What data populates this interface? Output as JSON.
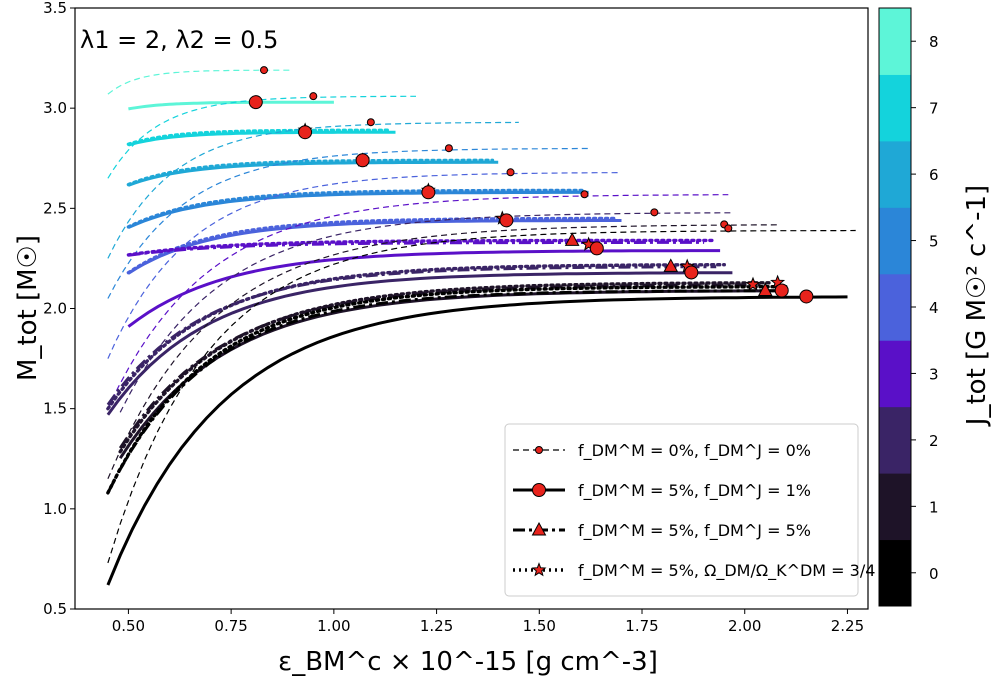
{
  "chart_data": {
    "type": "line",
    "annotation": "λ1 = 2, λ2 = 0.5",
    "xlabel": "ε_BM^c × 10^-15 [g cm^-3]",
    "ylabel": "M_tot [M☉]",
    "colorbar_label": "J_tot [G M☉² c^-1]",
    "xlim": [
      0.37,
      2.3
    ],
    "ylim": [
      0.5,
      3.5
    ],
    "xticks": [
      "0.50",
      "0.75",
      "1.00",
      "1.25",
      "1.50",
      "1.75",
      "2.00",
      "2.25"
    ],
    "yticks": [
      "0.5",
      "1.0",
      "1.5",
      "2.0",
      "2.5",
      "3.0",
      "3.5"
    ],
    "colorbar_ticks": [
      "0",
      "1",
      "2",
      "3",
      "4",
      "5",
      "6",
      "7",
      "8"
    ],
    "colorbar_colors": [
      "#000000",
      "#1e1328",
      "#3a2466",
      "#5a10c8",
      "#4b62dc",
      "#2b86d8",
      "#1fa8d6",
      "#14d3dc",
      "#5df5d8"
    ],
    "legend": [
      {
        "label": "f_DM^M = 0%, f_DM^J = 0%",
        "style": "dashed",
        "marker": "circle-small"
      },
      {
        "label": "f_DM^M = 5%, f_DM^J = 1%",
        "style": "solid",
        "marker": "circle"
      },
      {
        "label": "f_DM^M = 5%, f_DM^J = 5%",
        "style": "dashdot",
        "marker": "triangle"
      },
      {
        "label": "f_DM^M = 5%, Ω_DM/Ω_K^DM = 3/4",
        "style": "dotted",
        "marker": "star"
      }
    ],
    "series_J0": [
      {
        "name": "J=0 f=0%",
        "style": "dashed",
        "color": "#000000",
        "x": [
          0.45,
          2.27
        ],
        "Mmin": 0.73,
        "Mmax": 2.39,
        "k": 4.2,
        "marker": {
          "x": 1.96,
          "y": 2.4
        }
      },
      {
        "name": "J=0 f=5%/1%",
        "style": "solid",
        "color": "#000000",
        "x": [
          0.45,
          2.25
        ],
        "Mmin": 0.62,
        "Mmax": 2.06,
        "k": 3.6,
        "marker": {
          "x": 2.15,
          "y": 2.06
        }
      },
      {
        "name": "J=0 f=5%/5%",
        "style": "dashdot",
        "color": "#000000",
        "x": [
          0.45,
          2.1
        ],
        "Mmin": 1.08,
        "Mmax": 2.09,
        "k": 3.8,
        "marker": {
          "x": 2.05,
          "y": 2.09
        }
      },
      {
        "name": "J=0 f=5% Ω",
        "style": "dotted",
        "color": "#000000",
        "x": [
          0.45,
          2.1
        ],
        "Mmin": 1.08,
        "Mmax": 2.11,
        "k": 3.8,
        "marker": {
          "x": 2.02,
          "y": 2.12
        }
      }
    ],
    "series_rot": [
      {
        "J": 1,
        "color": "#1e1328",
        "x": [
          0.45,
          2.08
        ],
        "ref": {
          "Mmin": 1.15,
          "Mmax": 2.42,
          "marker": [
            1.95,
            2.42
          ]
        },
        "f51": {
          "x": [
            0.48,
            2.08
          ],
          "Mmin": 1.15,
          "Mmax": 2.09,
          "marker": [
            2.09,
            2.09
          ]
        },
        "f55": {
          "Mmin": 1.2,
          "Mmax": 2.12
        },
        "fo": {
          "Mmin": 1.18,
          "Mmax": 2.13
        }
      },
      {
        "J": 2,
        "color": "#3a2466",
        "x": [
          0.48,
          1.97
        ],
        "ref": {
          "Mmin": 1.35,
          "Mmax": 2.48,
          "marker": [
            1.78,
            2.48
          ]
        },
        "f51": {
          "x": [
            0.45,
            1.97
          ],
          "Mmin": 1.47,
          "Mmax": 2.18,
          "marker": [
            1.87,
            2.18
          ]
        },
        "f55": {
          "Mmin": 1.52,
          "Mmax": 2.21,
          "marker": [
            1.82,
            2.21
          ]
        },
        "fo": {
          "Mmin": 1.5,
          "Mmax": 2.22,
          "marker": [
            1.86,
            2.21
          ]
        }
      },
      {
        "J": 3,
        "color": "#5a10c8",
        "x": [
          0.45,
          1.96
        ],
        "ref": {
          "Mmin": 1.5,
          "Mmax": 2.57,
          "marker": [
            1.61,
            2.57
          ]
        },
        "f51": {
          "x": [
            0.5,
            1.94
          ],
          "Mmin": 1.82,
          "Mmax": 2.29,
          "marker": [
            1.64,
            2.3
          ]
        },
        "f55": {
          "Mmin": 2.25,
          "Mmax": 2.33,
          "marker": [
            1.58,
            2.34
          ]
        },
        "fo": {
          "Mmin": 2.25,
          "Mmax": 2.34,
          "marker": [
            1.62,
            2.32
          ]
        }
      },
      {
        "J": 4,
        "color": "#4b62dc",
        "x": [
          0.45,
          1.7
        ],
        "ref": {
          "Mmin": 1.75,
          "Mmax": 2.68,
          "marker": [
            1.43,
            2.68
          ]
        },
        "f51": {
          "x": [
            0.5,
            1.7
          ],
          "Mmin": 2.1,
          "Mmax": 2.44,
          "marker": [
            1.42,
            2.44
          ]
        },
        "fo": {
          "Mmin": 2.1,
          "Mmax": 2.45,
          "marker": [
            1.41,
            2.45
          ]
        }
      },
      {
        "J": 5,
        "color": "#2b86d8",
        "x": [
          0.45,
          1.62
        ],
        "ref": {
          "Mmin": 2.05,
          "Mmax": 2.8,
          "marker": [
            1.28,
            2.8
          ]
        },
        "f51": {
          "x": [
            0.5,
            1.62
          ],
          "Mmin": 2.35,
          "Mmax": 2.58,
          "marker": [
            1.23,
            2.58
          ]
        },
        "fo": {
          "Mmin": 2.35,
          "Mmax": 2.59,
          "marker": [
            1.23,
            2.59
          ]
        }
      },
      {
        "J": 6,
        "color": "#1fa8d6",
        "x": [
          0.45,
          1.45
        ],
        "ref": {
          "Mmin": 2.25,
          "Mmax": 2.93,
          "marker": [
            1.09,
            2.93
          ]
        },
        "f51": {
          "x": [
            0.5,
            1.4
          ],
          "Mmin": 2.57,
          "Mmax": 2.73,
          "marker": [
            1.07,
            2.74
          ]
        },
        "fo": {
          "Mmin": 2.57,
          "Mmax": 2.74,
          "marker": [
            1.07,
            2.74
          ]
        }
      },
      {
        "J": 7,
        "color": "#14d3dc",
        "x": [
          0.45,
          1.2
        ],
        "ref": {
          "Mmin": 2.65,
          "Mmax": 3.06,
          "marker": [
            0.95,
            3.06
          ]
        },
        "f51": {
          "x": [
            0.5,
            1.15
          ],
          "Mmin": 2.78,
          "Mmax": 2.88,
          "marker": [
            0.93,
            2.88
          ]
        },
        "fo": {
          "Mmin": 2.78,
          "Mmax": 2.89,
          "marker": [
            0.93,
            2.89
          ]
        }
      },
      {
        "J": 8,
        "color": "#5df5d8",
        "x": [
          0.45,
          0.9
        ],
        "ref": {
          "Mmin": 3.07,
          "Mmax": 3.19,
          "marker": [
            0.83,
            3.19
          ]
        },
        "f51": {
          "x": [
            0.5,
            1.0
          ],
          "Mmin": 2.97,
          "Mmax": 3.03,
          "marker": [
            0.81,
            3.03
          ]
        }
      }
    ]
  }
}
